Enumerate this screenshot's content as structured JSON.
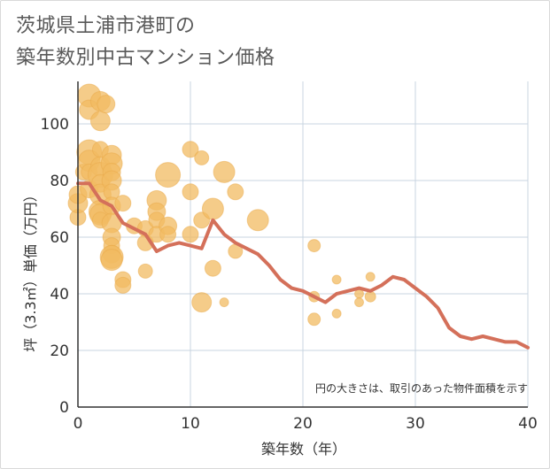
{
  "title_line1": "茨城県土浦市港町の",
  "title_line2": "築年数別中古マンション価格",
  "colors": {
    "bubble": "#f2bb61",
    "line": "#d4705a",
    "grid": "#c8d4e0",
    "axis": "#333333"
  },
  "chart_data": {
    "type": "scatter",
    "xlabel": "築年数（年）",
    "ylabel": "坪（3.3㎡）単価（万円）",
    "xlim": [
      0,
      40
    ],
    "ylim": [
      0,
      115
    ],
    "xticks": [
      0,
      10,
      20,
      30,
      40
    ],
    "yticks": [
      0,
      20,
      40,
      60,
      80,
      100
    ],
    "note": "円の大きさは、取引のあった物件面積を示す",
    "points": [
      {
        "x": 0,
        "y": 67,
        "s": 9
      },
      {
        "x": 0,
        "y": 72,
        "s": 11
      },
      {
        "x": 0,
        "y": 75,
        "s": 10
      },
      {
        "x": 0.5,
        "y": 83,
        "s": 9
      },
      {
        "x": 1,
        "y": 110,
        "s": 13
      },
      {
        "x": 1,
        "y": 105,
        "s": 11
      },
      {
        "x": 1,
        "y": 90,
        "s": 14
      },
      {
        "x": 1,
        "y": 87,
        "s": 12
      },
      {
        "x": 1,
        "y": 77,
        "s": 10
      },
      {
        "x": 1,
        "y": 83,
        "s": 9
      },
      {
        "x": 2,
        "y": 108,
        "s": 11
      },
      {
        "x": 2,
        "y": 101,
        "s": 11
      },
      {
        "x": 2,
        "y": 91,
        "s": 9
      },
      {
        "x": 2,
        "y": 85,
        "s": 11
      },
      {
        "x": 2,
        "y": 82,
        "s": 14
      },
      {
        "x": 2,
        "y": 79,
        "s": 10
      },
      {
        "x": 2,
        "y": 75,
        "s": 12
      },
      {
        "x": 2,
        "y": 69,
        "s": 13
      },
      {
        "x": 2,
        "y": 68,
        "s": 12
      },
      {
        "x": 2,
        "y": 66,
        "s": 9
      },
      {
        "x": 2.5,
        "y": 107,
        "s": 10
      },
      {
        "x": 3,
        "y": 89,
        "s": 11
      },
      {
        "x": 3,
        "y": 86,
        "s": 12
      },
      {
        "x": 3,
        "y": 83,
        "s": 10
      },
      {
        "x": 3,
        "y": 80,
        "s": 11
      },
      {
        "x": 3,
        "y": 76,
        "s": 9
      },
      {
        "x": 3,
        "y": 71,
        "s": 10
      },
      {
        "x": 3,
        "y": 65,
        "s": 11
      },
      {
        "x": 3,
        "y": 60,
        "s": 10
      },
      {
        "x": 3,
        "y": 57,
        "s": 9
      },
      {
        "x": 3,
        "y": 54,
        "s": 10
      },
      {
        "x": 3,
        "y": 53,
        "s": 13
      },
      {
        "x": 3,
        "y": 52,
        "s": 12
      },
      {
        "x": 4,
        "y": 72,
        "s": 9
      },
      {
        "x": 4,
        "y": 45,
        "s": 9
      },
      {
        "x": 4,
        "y": 43,
        "s": 9
      },
      {
        "x": 5,
        "y": 64,
        "s": 9
      },
      {
        "x": 6,
        "y": 63,
        "s": 9
      },
      {
        "x": 6,
        "y": 58,
        "s": 9
      },
      {
        "x": 6,
        "y": 48,
        "s": 8
      },
      {
        "x": 7,
        "y": 73,
        "s": 11
      },
      {
        "x": 7,
        "y": 69,
        "s": 10
      },
      {
        "x": 7,
        "y": 66,
        "s": 9
      },
      {
        "x": 7,
        "y": 61,
        "s": 9
      },
      {
        "x": 8,
        "y": 82,
        "s": 14
      },
      {
        "x": 8,
        "y": 64,
        "s": 10
      },
      {
        "x": 8,
        "y": 61,
        "s": 9
      },
      {
        "x": 10,
        "y": 91,
        "s": 9
      },
      {
        "x": 10,
        "y": 76,
        "s": 9
      },
      {
        "x": 10,
        "y": 61,
        "s": 9
      },
      {
        "x": 11,
        "y": 88,
        "s": 8
      },
      {
        "x": 11,
        "y": 66,
        "s": 9
      },
      {
        "x": 11,
        "y": 37,
        "s": 11
      },
      {
        "x": 12,
        "y": 70,
        "s": 12
      },
      {
        "x": 12,
        "y": 49,
        "s": 9
      },
      {
        "x": 13,
        "y": 83,
        "s": 12
      },
      {
        "x": 13,
        "y": 37,
        "s": 5
      },
      {
        "x": 14,
        "y": 76,
        "s": 9
      },
      {
        "x": 14,
        "y": 55,
        "s": 8
      },
      {
        "x": 16,
        "y": 66,
        "s": 12
      },
      {
        "x": 21,
        "y": 57,
        "s": 7
      },
      {
        "x": 21,
        "y": 39,
        "s": 6
      },
      {
        "x": 21,
        "y": 31,
        "s": 7
      },
      {
        "x": 23,
        "y": 45,
        "s": 5
      },
      {
        "x": 23,
        "y": 33,
        "s": 5
      },
      {
        "x": 25,
        "y": 40,
        "s": 5
      },
      {
        "x": 25,
        "y": 37,
        "s": 5
      },
      {
        "x": 26,
        "y": 46,
        "s": 5
      },
      {
        "x": 26,
        "y": 39,
        "s": 6
      }
    ],
    "series": [
      {
        "x": [
          0,
          1,
          2,
          3,
          4,
          5,
          6,
          7,
          8,
          9,
          10,
          11,
          12,
          13,
          14,
          15,
          16,
          17,
          18,
          19,
          20,
          21,
          22,
          23,
          24,
          25,
          26,
          27,
          28,
          29,
          30,
          31,
          32,
          33,
          34,
          35,
          36,
          37,
          38,
          39,
          40
        ],
        "values": [
          79,
          79,
          73,
          71,
          65,
          63,
          61,
          55,
          57,
          58,
          57,
          56,
          66,
          61,
          58,
          56,
          54,
          50,
          45,
          42,
          41,
          39,
          37,
          40,
          41,
          42,
          41,
          43,
          46,
          45,
          42,
          39,
          35,
          28,
          25,
          24,
          25,
          24,
          23,
          23,
          21
        ]
      }
    ]
  }
}
